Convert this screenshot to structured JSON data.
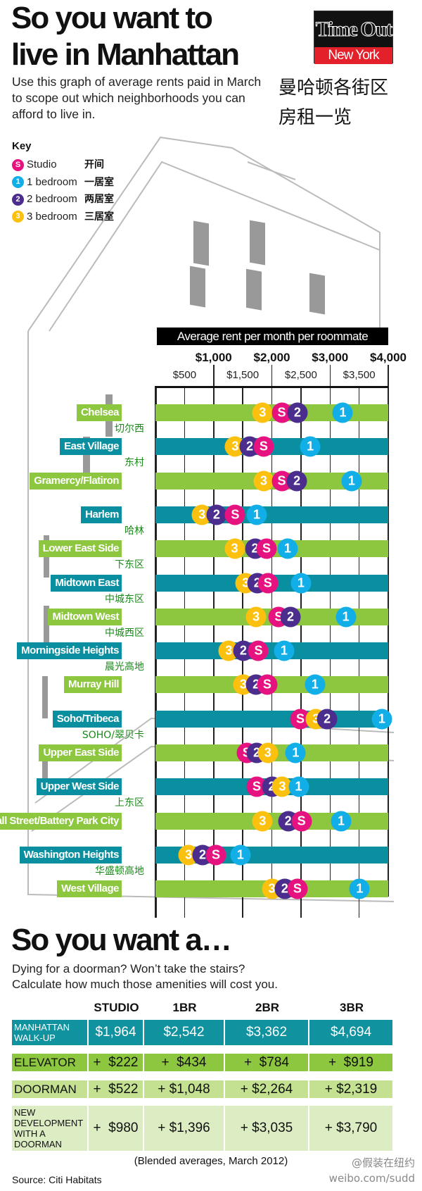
{
  "header": {
    "title_line1": "So you want to",
    "title_line2": "live in Manhattan",
    "subtitle": "Use this graph of average rents paid in March to scope out which neighborhoods you can afford to live in.",
    "zh_title_line1": "曼哈顿各街区",
    "zh_title_line2": "房租一览",
    "logo_top": "Time Out",
    "logo_bottom": "New York"
  },
  "key": {
    "title": "Key",
    "items": [
      {
        "badge": "S",
        "label": "Studio",
        "zh": "开间",
        "color": "#e6127f"
      },
      {
        "badge": "1",
        "label": "1 bedroom",
        "zh": "一居室",
        "color": "#12aee8"
      },
      {
        "badge": "2",
        "label": "2 bedroom",
        "zh": "两居室",
        "color": "#4b2d8e"
      },
      {
        "badge": "3",
        "label": "3 bedroom",
        "zh": "三居室",
        "color": "#fcc10f"
      }
    ]
  },
  "chart_data": {
    "type": "scatter",
    "title": "Average rent per month per roommate",
    "xlim": [
      0,
      4000
    ],
    "major_ticks": [
      "$1,000",
      "$2,000",
      "$3,000",
      "$4,000"
    ],
    "minor_ticks": [
      "$500",
      "$1,500",
      "$2,500",
      "$3,500"
    ],
    "series_badges": {
      "studio": "S",
      "br1": "1",
      "br2": "2",
      "br3": "3"
    },
    "series_colors": {
      "studio": "#e6127f",
      "br1": "#12aee8",
      "br2": "#4b2d8e",
      "br3": "#fcc10f"
    },
    "row_colors": [
      "#8dc63f",
      "#0a8fa0"
    ],
    "neighborhoods": [
      {
        "name": "Chelsea",
        "zh": "切尔西",
        "studio": 2170,
        "br1": 3220,
        "br2": 2440,
        "br3": 1840
      },
      {
        "name": "East Village",
        "zh": "东村",
        "studio": 1860,
        "br1": 2660,
        "br2": 1620,
        "br3": 1370
      },
      {
        "name": "Gramercy/Flatiron",
        "zh": "",
        "studio": 2170,
        "br1": 3370,
        "br2": 2430,
        "br3": 1860
      },
      {
        "name": "Harlem",
        "zh": "哈林",
        "studio": 1370,
        "br1": 1740,
        "br2": 1050,
        "br3": 800
      },
      {
        "name": "Lower East Side",
        "zh": "下东区",
        "studio": 1910,
        "br1": 2270,
        "br2": 1710,
        "br3": 1360
      },
      {
        "name": "Midtown East",
        "zh": "中城东区",
        "studio": 1930,
        "br1": 2500,
        "br2": 1750,
        "br3": 1550
      },
      {
        "name": "Midtown West",
        "zh": "中城西区",
        "studio": 2120,
        "br1": 3270,
        "br2": 2320,
        "br3": 1730
      },
      {
        "name": "Morningside Heights",
        "zh": "晨光高地",
        "studio": 1770,
        "br1": 2210,
        "br2": 1510,
        "br3": 1260
      },
      {
        "name": "Murray Hill",
        "zh": "",
        "studio": 1920,
        "br1": 2740,
        "br2": 1730,
        "br3": 1510
      },
      {
        "name": "Soho/Tribeca",
        "zh": "SOHO/翠贝卡",
        "studio": 2490,
        "br1": 3890,
        "br2": 2950,
        "br3": 2760
      },
      {
        "name": "Upper East Side",
        "zh": "",
        "studio": 1570,
        "br1": 2410,
        "br2": 1740,
        "br3": 1930
      },
      {
        "name": "Upper West Side",
        "zh": "上东区",
        "studio": 1740,
        "br1": 2460,
        "br2": 2000,
        "br3": 2180
      },
      {
        "name": "Wall Street/Battery Park City",
        "zh": "",
        "studio": 2510,
        "br1": 3190,
        "br2": 2280,
        "br3": 1840
      },
      {
        "name": "Washington Heights",
        "zh": "华盛顿高地",
        "studio": 1040,
        "br1": 1460,
        "br2": 810,
        "br3": 570
      },
      {
        "name": "West Village",
        "zh": "",
        "studio": 2440,
        "br1": 3510,
        "br2": 2220,
        "br3": 2000
      }
    ]
  },
  "amenities": {
    "title": "So you want a…",
    "subtitle_line1": "Dying for a doorman? Won’t take the stairs?",
    "subtitle_line2": "Calculate how much those amenities will cost you.",
    "columns": [
      "STUDIO",
      "1BR",
      "2BR",
      "3BR"
    ],
    "rows": [
      {
        "label": "MANHATTAN WALK-UP",
        "values": [
          "$1,964",
          "$2,542",
          "$3,362",
          "$4,694"
        ],
        "bg": "#11929f",
        "fg": "#ffffff"
      },
      {
        "label": "ELEVATOR",
        "values": [
          "+  $222",
          "+  $434",
          "+  $784",
          "+  $919"
        ],
        "bg": "#8dc63f",
        "fg": "#111111"
      },
      {
        "label": "DOORMAN",
        "values": [
          "+  $522",
          "+ $1,048",
          "+ $2,264",
          "+ $2,319"
        ],
        "bg": "#c3e190",
        "fg": "#111111"
      },
      {
        "label": "NEW DEVELOPMENT WITH A DOORMAN",
        "values": [
          "+  $980",
          "+ $1,396",
          "+ $3,035",
          "+ $3,790"
        ],
        "bg": "#dcedc4",
        "fg": "#111111"
      }
    ],
    "note": "(Blended averages, March 2012)",
    "source": "Source: Citi Habitats"
  },
  "watermark": {
    "line1": "@假装在纽约",
    "line2": "weibo.com/sudd"
  }
}
